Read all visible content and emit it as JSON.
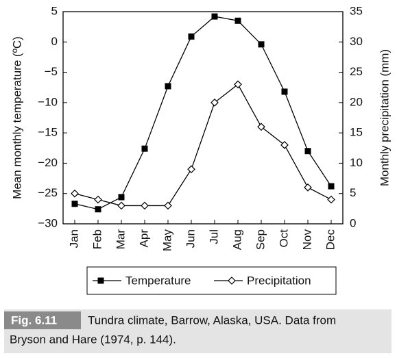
{
  "chart_data": {
    "type": "line",
    "categories": [
      "Jan",
      "Feb",
      "Mar",
      "Apr",
      "May",
      "Jun",
      "Jul",
      "Aug",
      "Sep",
      "Oct",
      "Nov",
      "Dec"
    ],
    "y_label": "Mean monthly temperature (ºC)",
    "y2_label": "Monthly precipitation (mm)",
    "ylim": [
      -30,
      5
    ],
    "yticks": [
      {
        "value": -30,
        "label": "−30"
      },
      {
        "value": -25,
        "label": "−25"
      },
      {
        "value": -20,
        "label": "−20"
      },
      {
        "value": -15,
        "label": "−15"
      },
      {
        "value": -10,
        "label": "−10"
      },
      {
        "value": -5,
        "label": "−5"
      },
      0,
      5
    ],
    "y2lim": [
      0,
      35
    ],
    "y2ticks": [
      0,
      5,
      10,
      15,
      20,
      25,
      30,
      35
    ],
    "grid": false,
    "legend": "bottom",
    "series": [
      {
        "name": "Temperature",
        "color": "#000000",
        "marker": "square",
        "values": [
          -26.7,
          -27.6,
          -25.6,
          -17.6,
          -7.3,
          0.9,
          4.2,
          3.5,
          -0.4,
          -8.2,
          -18,
          -23.8
        ]
      },
      {
        "name": "Precipitation",
        "color": "#000000",
        "marker": "diamond",
        "axis": "y2",
        "values": [
          5,
          4,
          3,
          3,
          3,
          9,
          20,
          23,
          16,
          13,
          6,
          4
        ]
      }
    ]
  },
  "caption": {
    "label": "Fig. 6.11",
    "lines": [
      "Tundra climate, Barrow, Alaska, USA. Data from",
      "Bryson and Hare (1974, p. 144)."
    ]
  }
}
